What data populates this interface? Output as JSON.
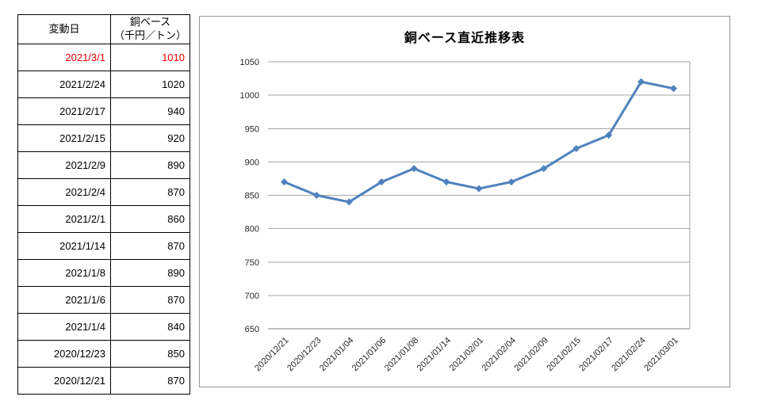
{
  "window": {
    "background": "#FFFFFF"
  },
  "table": {
    "header": {
      "date_label": "変動日",
      "value_label_line1": "銅ベース",
      "value_label_line2": "（千円／トン）"
    },
    "rows": [
      {
        "date": "2021/3/1",
        "value": 1010,
        "highlight": true
      },
      {
        "date": "2021/2/24",
        "value": 1020,
        "highlight": false
      },
      {
        "date": "2021/2/17",
        "value": 940,
        "highlight": false
      },
      {
        "date": "2021/2/15",
        "value": 920,
        "highlight": false
      },
      {
        "date": "2021/2/9",
        "value": 890,
        "highlight": false
      },
      {
        "date": "2021/2/4",
        "value": 870,
        "highlight": false
      },
      {
        "date": "2021/2/1",
        "value": 860,
        "highlight": false
      },
      {
        "date": "2021/1/14",
        "value": 870,
        "highlight": false
      },
      {
        "date": "2021/1/8",
        "value": 890,
        "highlight": false
      },
      {
        "date": "2021/1/6",
        "value": 870,
        "highlight": false
      },
      {
        "date": "2021/1/4",
        "value": 840,
        "highlight": false
      },
      {
        "date": "2020/12/23",
        "value": 850,
        "highlight": false
      },
      {
        "date": "2020/12/21",
        "value": 870,
        "highlight": false
      }
    ],
    "highlight_color": "#FF0000",
    "text_color": "#000000",
    "border_color": "#000000"
  },
  "chart": {
    "colors": {
      "series": "#4F81BD",
      "grid": "#A6A6A6",
      "axis": "#808080",
      "tick_labels": "#262626",
      "panel_border": "#969696"
    }
  },
  "chart_data": {
    "type": "line",
    "title": "銅ベース直近推移表",
    "categories": [
      "2020/12/21",
      "2020/12/23",
      "2021/01/04",
      "2021/01/06",
      "2021/01/08",
      "2021/01/14",
      "2021/02/01",
      "2021/02/04",
      "2021/02/09",
      "2021/02/15",
      "2021/02/17",
      "2021/02/24",
      "2021/03/01"
    ],
    "values": [
      870,
      850,
      840,
      870,
      890,
      870,
      860,
      870,
      890,
      920,
      940,
      1020,
      1010
    ],
    "xlabel": "",
    "ylabel": "",
    "ylim": [
      650,
      1050
    ],
    "ytick_step": 50,
    "y_ticks": [
      650,
      700,
      750,
      800,
      850,
      900,
      950,
      1000,
      1050
    ],
    "grid": true,
    "legend": false,
    "marker": "diamond",
    "x_label_rotation": -45
  }
}
